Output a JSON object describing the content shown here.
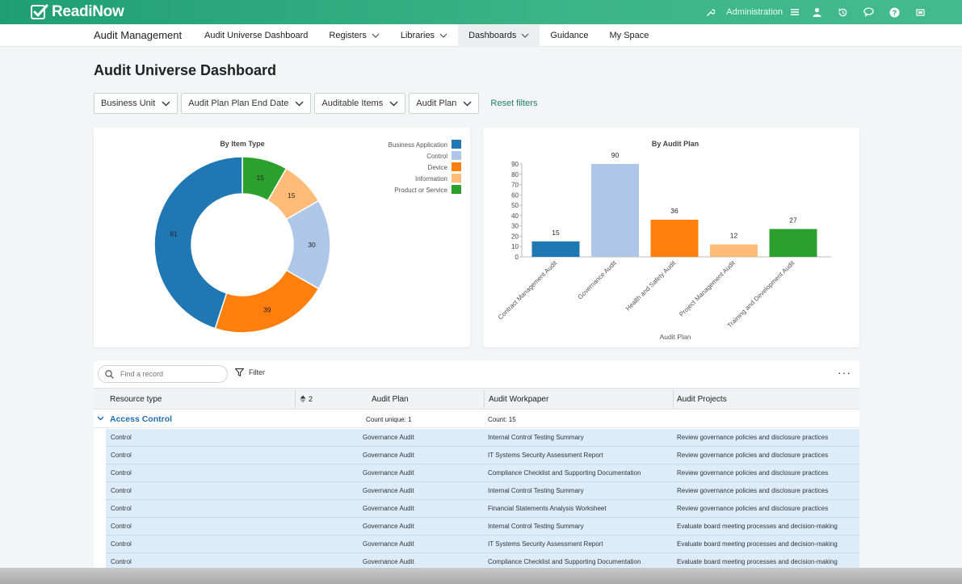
{
  "brand": {
    "logo_text": "ReadiNow"
  },
  "topbar": {
    "admin_label": "Administration"
  },
  "nav": {
    "app_title": "Audit Management",
    "items": [
      {
        "label": "Audit Universe Dashboard",
        "dropdown": false,
        "active": false
      },
      {
        "label": "Registers",
        "dropdown": true,
        "active": false
      },
      {
        "label": "Libraries",
        "dropdown": true,
        "active": false
      },
      {
        "label": "Dashboards",
        "dropdown": true,
        "active": true
      },
      {
        "label": "Guidance",
        "dropdown": false,
        "active": false
      },
      {
        "label": "My Space",
        "dropdown": false,
        "active": false
      }
    ]
  },
  "page": {
    "title": "Audit Universe Dashboard"
  },
  "filters": {
    "items": [
      "Business Unit",
      "Audit Plan Plan End Date",
      "Auditable Items",
      "Audit Plan"
    ],
    "reset_label": "Reset filters"
  },
  "chart_data": [
    {
      "type": "pie",
      "title": "By Item Type",
      "categories": [
        "Business Application",
        "Control",
        "Device",
        "Information",
        "Product or Service"
      ],
      "values": [
        81,
        30,
        39,
        15,
        15
      ],
      "colors": [
        "#1f77b4",
        "#aec7e8",
        "#ff7f0e",
        "#ffbb78",
        "#2ca02c"
      ],
      "legend": "top-right",
      "donut": true
    },
    {
      "type": "bar",
      "title": "By Audit Plan",
      "categories": [
        "Contract Management Audit",
        "Governance Audit",
        "Health and Safety Audit",
        "Project Management Audit",
        "Training and Development Audit"
      ],
      "values": [
        15,
        90,
        36,
        12,
        27
      ],
      "colors": [
        "#1f77b4",
        "#aec7e8",
        "#ff7f0e",
        "#ffbb78",
        "#2ca02c"
      ],
      "xlabel": "Audit Plan",
      "ylabel": "",
      "ylim": [
        0,
        90
      ],
      "yticks": [
        0,
        10,
        20,
        30,
        40,
        50,
        60,
        70,
        80,
        90
      ]
    }
  ],
  "grid": {
    "search_placeholder": "Find a record",
    "filter_label": "Filter",
    "more_label": "···",
    "columns": [
      "Resource type",
      "2",
      "Audit Plan",
      "Audit Workpaper",
      "Audit Projects"
    ],
    "group": {
      "label": "Access Control",
      "count_unique": "Count unique: 1",
      "count": "Count: 15"
    },
    "rows": [
      [
        "Control",
        "Governance Audit",
        "Internal Control Testing Summary",
        "Review governance policies and disclosure practices"
      ],
      [
        "Control",
        "Governance Audit",
        "IT Systems Security Assessment Report",
        "Review governance policies and disclosure practices"
      ],
      [
        "Control",
        "Governance Audit",
        "Compliance Checklist and Supporting Documentation",
        "Review governance policies and disclosure practices"
      ],
      [
        "Control",
        "Governance Audit",
        "Internal Control Testing Summary",
        "Review governance policies and disclosure practices"
      ],
      [
        "Control",
        "Governance Audit",
        "Financial Statements Analysis Worksheet",
        "Review governance policies and disclosure practices"
      ],
      [
        "Control",
        "Governance Audit",
        "Internal Control Testing Summary",
        "Evaluate board meeting processes and decision-making"
      ],
      [
        "Control",
        "Governance Audit",
        "IT Systems Security Assessment Report",
        "Evaluate board meeting processes and decision-making"
      ],
      [
        "Control",
        "Governance Audit",
        "Compliance Checklist and Supporting Documentation",
        "Evaluate board meeting processes and decision-making"
      ]
    ]
  }
}
